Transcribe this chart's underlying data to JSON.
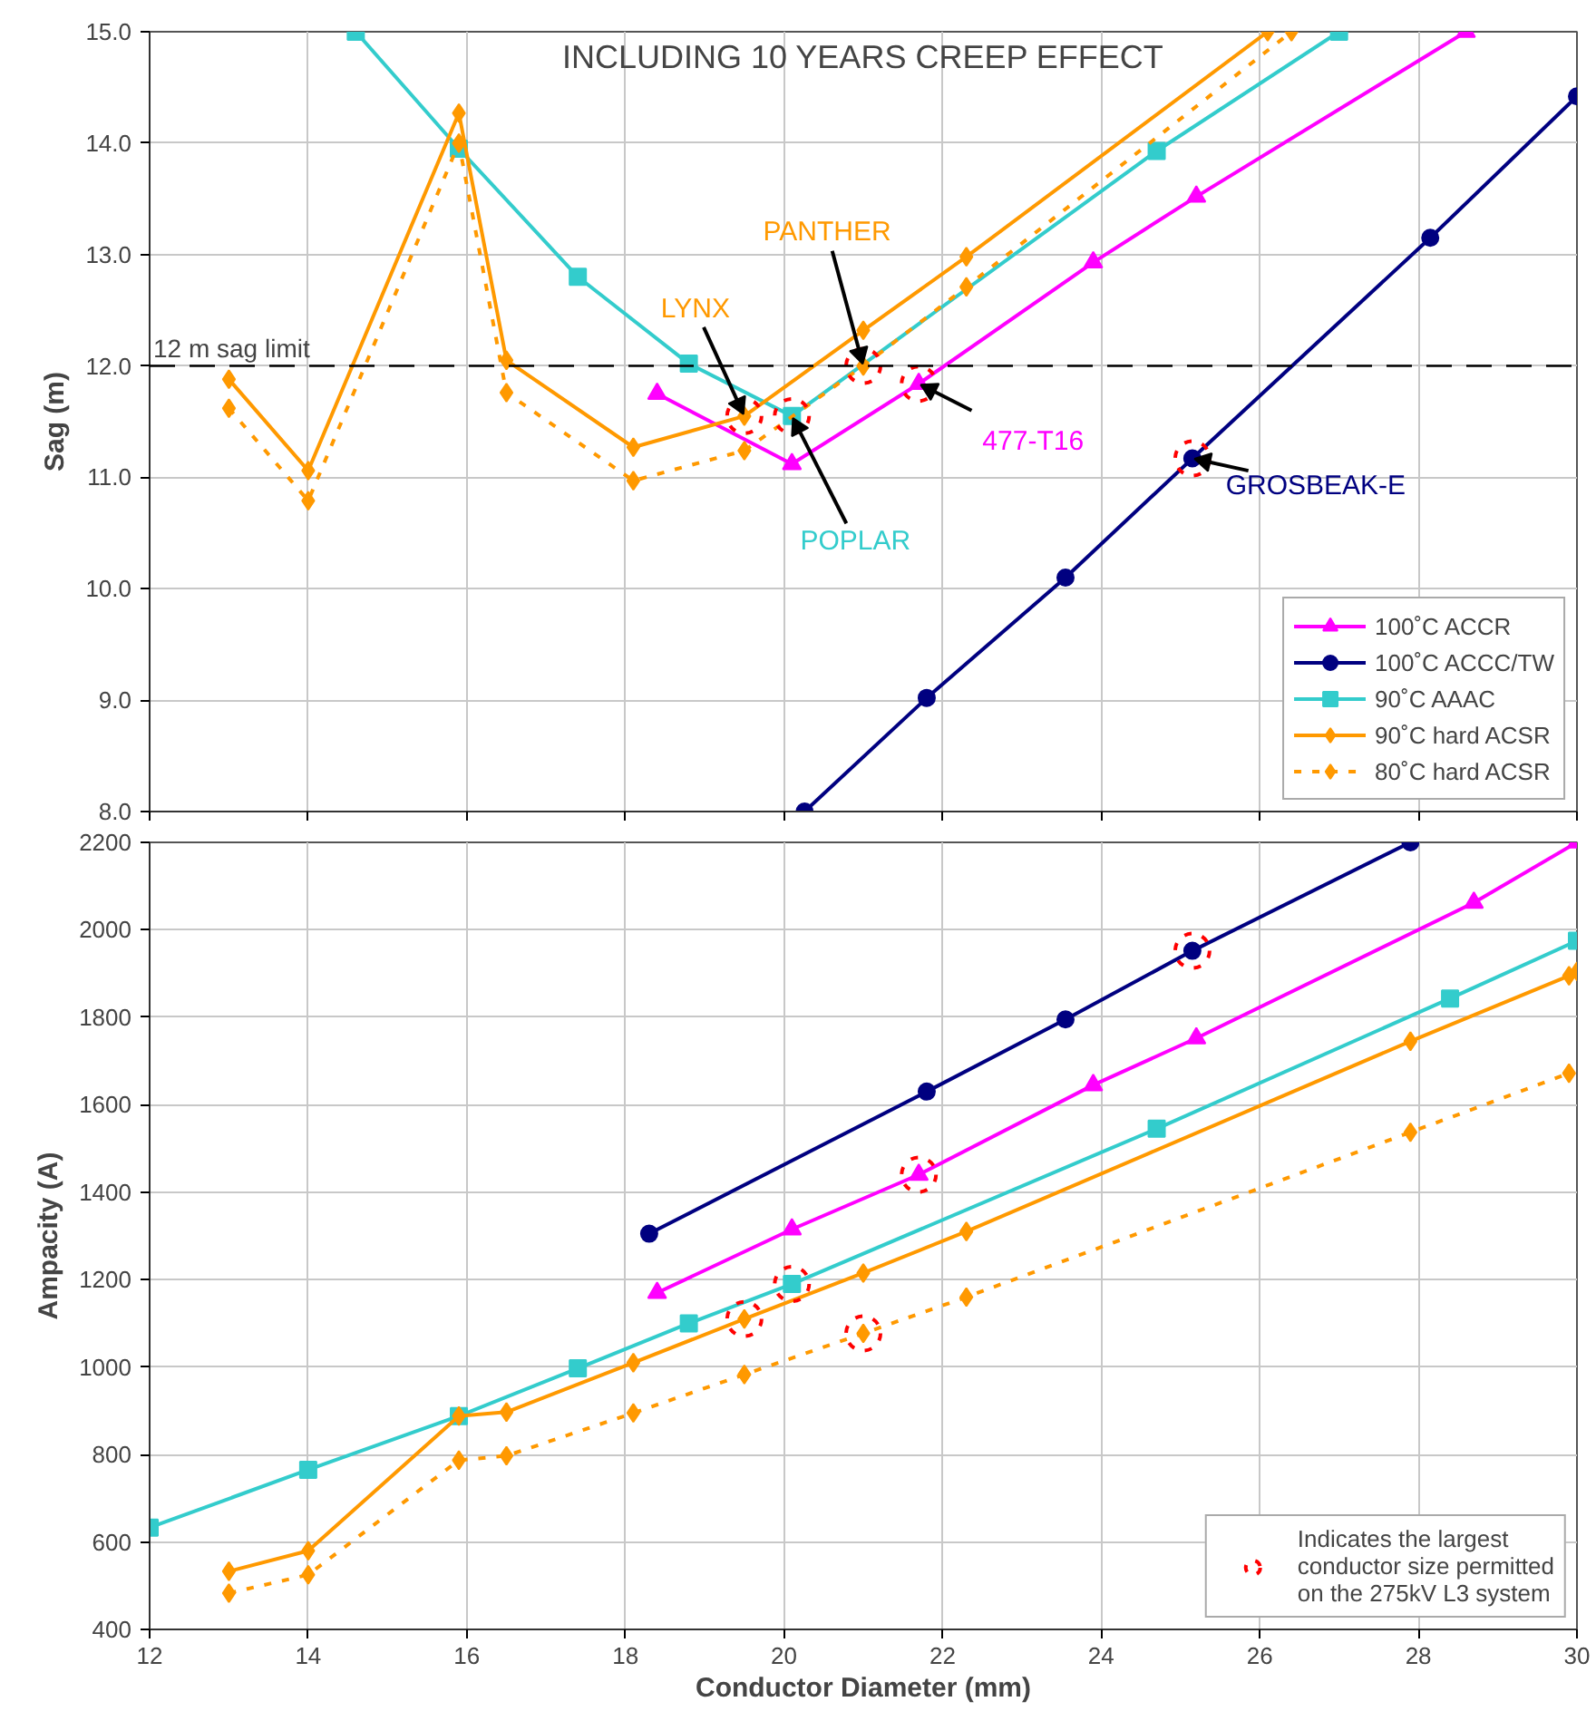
{
  "chart_data": [
    {
      "type": "line",
      "title": "INCLUDING 10 YEARS CREEP EFFECT",
      "ylabel": "Sag (m)",
      "xlim": [
        12,
        30
      ],
      "xticks": [
        12,
        14,
        16,
        18,
        20,
        22,
        24,
        26,
        28,
        30
      ],
      "ylim": [
        8,
        15
      ],
      "yticks": [
        {
          "value": 8,
          "label": "8.0"
        },
        {
          "value": 9,
          "label": "9.0"
        },
        {
          "value": 10,
          "label": "10.0"
        },
        {
          "value": 11,
          "label": "11.0"
        },
        {
          "value": 12,
          "label": "12.0"
        },
        {
          "value": 13,
          "label": "13.0"
        },
        {
          "value": 14,
          "label": "14.0"
        },
        {
          "value": 15,
          "label": "15.0"
        }
      ],
      "tick_labels": "y",
      "grid": true,
      "legend": "bottom right",
      "series": [
        {
          "name": "100˚C ACCR",
          "color": "#ff00ff",
          "marker": "triangle",
          "x": [
            18.4,
            20.1,
            21.7,
            23.9,
            25.2,
            28.6
          ],
          "values": [
            11.75,
            11.12,
            11.84,
            12.93,
            13.52,
            15.0
          ]
        },
        {
          "name": "100˚C ACCC/TW",
          "color": "#000080",
          "marker": "circle",
          "x": [
            20.26,
            21.8,
            23.55,
            25.15,
            28.15,
            30.0
          ],
          "values": [
            8.0,
            9.02,
            10.1,
            11.17,
            13.15,
            14.42
          ]
        },
        {
          "name": "90˚C AAAC",
          "color": "#33cccc",
          "marker": "square",
          "x": [
            14.6,
            15.9,
            17.4,
            18.8,
            20.1,
            24.7,
            27.0
          ],
          "values": [
            15.0,
            13.95,
            12.8,
            12.02,
            11.55,
            13.93,
            15.0
          ]
        },
        {
          "name": "90˚C hard ACSR",
          "color": "#ff9900",
          "marker": "diamond",
          "x": [
            13,
            14,
            15.9,
            16.5,
            18.1,
            19.5,
            21.0,
            22.3,
            26.1
          ],
          "values": [
            11.88,
            11.06,
            14.27,
            12.05,
            11.27,
            11.55,
            12.32,
            12.98,
            15.0
          ]
        },
        {
          "name": "80˚C hard ACSR",
          "color": "#ff9900",
          "marker": "diamond",
          "line_style": "dotted",
          "x": [
            13,
            14,
            15.9,
            16.5,
            18.1,
            19.5,
            21.0,
            22.3,
            26.4
          ],
          "values": [
            11.62,
            10.79,
            14.0,
            11.76,
            10.97,
            11.24,
            12.0,
            12.71,
            15.0
          ]
        },
        {
          "type": "scatter",
          "color": "#ff0000",
          "marker": "circle",
          "line_style": "dotted",
          "x": [
            19.5,
            20.1,
            21.0,
            21.7,
            25.15
          ],
          "values": [
            11.55,
            11.55,
            12.0,
            11.84,
            11.17
          ]
        }
      ],
      "ref_lines": [
        {
          "axis": "y",
          "value": 12,
          "label": "12 m sag limit",
          "color": "#000000",
          "line_style": "dashed"
        }
      ],
      "annotations": [
        {
          "text": "LYNX",
          "x": 19.5,
          "y": 11.55
        },
        {
          "text": "PANTHER",
          "x": 21.0,
          "y": 12.0
        },
        {
          "text": "POPLAR",
          "x": 20.1,
          "y": 11.55
        },
        {
          "text": "477-T16",
          "x": 21.7,
          "y": 11.84
        },
        {
          "text": "GROSBEAK-E",
          "x": 25.15,
          "y": 11.17
        }
      ]
    },
    {
      "type": "line",
      "xlabel": "Conductor Diameter (mm)",
      "ylabel": "Ampacity (A)",
      "xlim": [
        12,
        30
      ],
      "xticks": [
        12,
        14,
        16,
        18,
        20,
        22,
        24,
        26,
        28,
        30
      ],
      "ylim": [
        400,
        2200
      ],
      "yticks": [
        400,
        600,
        800,
        1000,
        1200,
        1400,
        1600,
        1800,
        2000,
        2200
      ],
      "grid": true,
      "legend": "bottom right",
      "series": [
        {
          "color": "#ff00ff",
          "marker": "triangle",
          "x": [
            18.4,
            20.1,
            21.7,
            23.9,
            25.2,
            28.7,
            30.0
          ],
          "values": [
            1170,
            1315,
            1440,
            1645,
            1752,
            2062,
            2200
          ]
        },
        {
          "color": "#000080",
          "marker": "circle",
          "x": [
            18.3,
            21.8,
            23.55,
            25.15,
            27.9
          ],
          "values": [
            1305,
            1630,
            1795,
            1952,
            2200
          ]
        },
        {
          "color": "#33cccc",
          "marker": "square",
          "x": [
            12.0,
            14.0,
            15.9,
            17.4,
            18.8,
            20.1,
            24.7,
            28.4,
            30.0
          ],
          "values": [
            633,
            765,
            888,
            997,
            1100,
            1190,
            1545,
            1843,
            1975
          ]
        },
        {
          "color": "#ff9900",
          "marker": "diamond",
          "x": [
            13,
            14,
            15.9,
            16.5,
            18.1,
            19.5,
            21.0,
            22.3,
            27.9,
            29.9,
            30.0
          ],
          "values": [
            533,
            580,
            888,
            897,
            1010,
            1110,
            1215,
            1310,
            1745,
            1895,
            1905
          ]
        },
        {
          "color": "#ff9900",
          "marker": "diamond",
          "line_style": "dotted",
          "x": [
            13,
            14,
            15.9,
            16.5,
            18.1,
            19.5,
            21.0,
            22.3,
            27.9,
            29.9
          ],
          "values": [
            483,
            525,
            787,
            797,
            895,
            983,
            1077,
            1160,
            1537,
            1672
          ]
        },
        {
          "type": "scatter",
          "name": "Indicates the largest conductor size permitted on the 275kV L3 system",
          "color": "#ff0000",
          "marker": "circle",
          "line_style": "dotted",
          "x": [
            19.5,
            20.1,
            21.0,
            21.7,
            25.15
          ],
          "values": [
            1110,
            1190,
            1077,
            1440,
            1952
          ]
        }
      ]
    }
  ]
}
